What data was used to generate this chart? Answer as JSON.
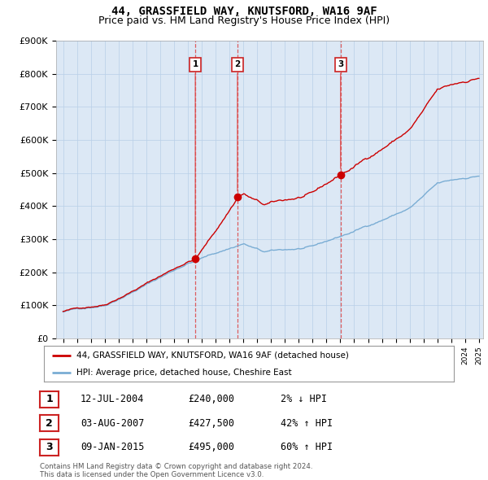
{
  "title": "44, GRASSFIELD WAY, KNUTSFORD, WA16 9AF",
  "subtitle": "Price paid vs. HM Land Registry's House Price Index (HPI)",
  "ylim": [
    0,
    900000
  ],
  "yticks": [
    0,
    100000,
    200000,
    300000,
    400000,
    500000,
    600000,
    700000,
    800000,
    900000
  ],
  "ytick_labels": [
    "£0",
    "£100K",
    "£200K",
    "£300K",
    "£400K",
    "£500K",
    "£600K",
    "£700K",
    "£800K",
    "£900K"
  ],
  "sale_dates": [
    2004.54,
    2007.58,
    2015.02
  ],
  "sale_prices": [
    240000,
    427500,
    495000
  ],
  "sale_labels": [
    "1",
    "2",
    "3"
  ],
  "hpi_line_color": "#7aadd4",
  "price_line_color": "#cc0000",
  "marker_color": "#cc0000",
  "vline_color": "#dd4444",
  "chart_bg_color": "#dce8f5",
  "background_color": "#ffffff",
  "grid_color": "#b8cfe8",
  "legend_label_red": "44, GRASSFIELD WAY, KNUTSFORD, WA16 9AF (detached house)",
  "legend_label_blue": "HPI: Average price, detached house, Cheshire East",
  "table_entries": [
    {
      "num": "1",
      "date": "12-JUL-2004",
      "price": "£240,000",
      "hpi": "2% ↓ HPI"
    },
    {
      "num": "2",
      "date": "03-AUG-2007",
      "price": "£427,500",
      "hpi": "42% ↑ HPI"
    },
    {
      "num": "3",
      "date": "09-JAN-2015",
      "price": "£495,000",
      "hpi": "60% ↑ HPI"
    }
  ],
  "footnote": "Contains HM Land Registry data © Crown copyright and database right 2024.\nThis data is licensed under the Open Government Licence v3.0.",
  "title_fontsize": 10,
  "subtitle_fontsize": 9,
  "xstart": 1995,
  "xend": 2025
}
